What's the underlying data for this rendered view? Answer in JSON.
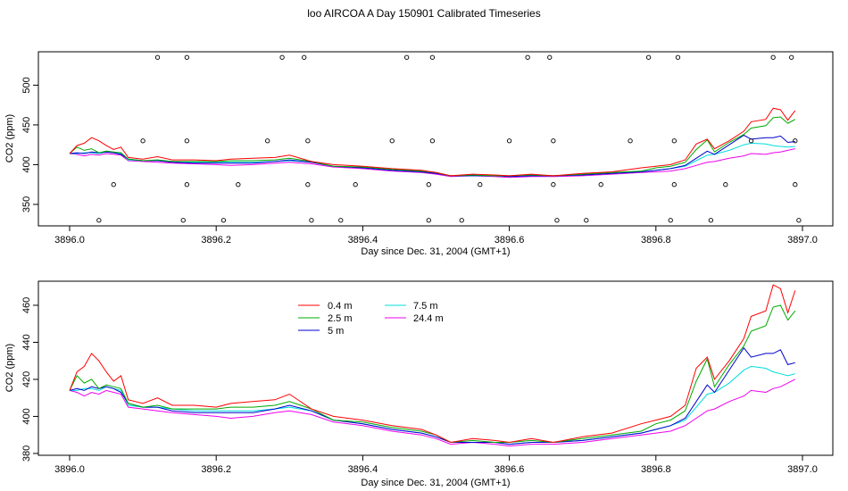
{
  "title": "loo AIRCOA A  Day 150901  Calibrated Timeseries",
  "colors": {
    "s04": "#ff0000",
    "s25": "#00aa00",
    "s5": "#0000cc",
    "s75": "#00dddd",
    "s244": "#ee00ee"
  },
  "chart_data": [
    {
      "type": "line",
      "xlabel": "Day since Dec. 31, 2004 (GMT+1)",
      "ylabel": "CO2 (ppm)",
      "xlim": [
        3896.0,
        3897.0
      ],
      "ylim": [
        323,
        542
      ],
      "xticks": [
        "3896.0",
        "3896.2",
        "3896.4",
        "3896.6",
        "3896.8",
        "3897.0"
      ],
      "xtick_values": [
        3896.0,
        3896.2,
        3896.4,
        3896.6,
        3896.8,
        3897.0
      ],
      "yticks": [
        "350",
        "400",
        "450",
        "500"
      ],
      "ytick_values": [
        350,
        400,
        450,
        500
      ],
      "scatter_points": [
        [
          3896.04,
          330
        ],
        [
          3896.06,
          375
        ],
        [
          3896.1,
          430
        ],
        [
          3896.12,
          535
        ],
        [
          3896.155,
          330
        ],
        [
          3896.16,
          375
        ],
        [
          3896.16,
          430
        ],
        [
          3896.16,
          535
        ],
        [
          3896.21,
          330
        ],
        [
          3896.23,
          375
        ],
        [
          3896.27,
          430
        ],
        [
          3896.29,
          535
        ],
        [
          3896.32,
          535
        ],
        [
          3896.325,
          430
        ],
        [
          3896.325,
          375
        ],
        [
          3896.33,
          330
        ],
        [
          3896.37,
          330
        ],
        [
          3896.39,
          375
        ],
        [
          3896.44,
          430
        ],
        [
          3896.46,
          535
        ],
        [
          3896.49,
          330
        ],
        [
          3896.49,
          375
        ],
        [
          3896.495,
          430
        ],
        [
          3896.495,
          535
        ],
        [
          3896.535,
          330
        ],
        [
          3896.56,
          375
        ],
        [
          3896.6,
          430
        ],
        [
          3896.625,
          535
        ],
        [
          3896.655,
          535
        ],
        [
          3896.66,
          430
        ],
        [
          3896.66,
          375
        ],
        [
          3896.665,
          330
        ],
        [
          3896.705,
          330
        ],
        [
          3896.725,
          375
        ],
        [
          3896.765,
          430
        ],
        [
          3896.79,
          535
        ],
        [
          3896.82,
          330
        ],
        [
          3896.825,
          375
        ],
        [
          3896.825,
          430
        ],
        [
          3896.83,
          535
        ],
        [
          3896.875,
          330
        ],
        [
          3896.895,
          375
        ],
        [
          3896.93,
          430
        ],
        [
          3896.96,
          535
        ],
        [
          3896.985,
          535
        ],
        [
          3896.99,
          430
        ],
        [
          3896.99,
          375
        ],
        [
          3896.995,
          330
        ]
      ]
    },
    {
      "type": "line",
      "xlabel": "Day since Dec. 31, 2004 (GMT+1)",
      "ylabel": "CO2 (ppm)",
      "xlim": [
        3896.0,
        3897.0
      ],
      "ylim": [
        379,
        473
      ],
      "xticks": [
        "3896.0",
        "3896.2",
        "3896.4",
        "3896.6",
        "3896.8",
        "3897.0"
      ],
      "xtick_values": [
        3896.0,
        3896.2,
        3896.4,
        3896.6,
        3896.8,
        3897.0
      ],
      "yticks": [
        "380",
        "400",
        "420",
        "440",
        "460"
      ],
      "ytick_values": [
        380,
        400,
        420,
        440,
        460
      ],
      "legend": {
        "position": "top-left",
        "items": [
          "0.4 m",
          "2.5 m",
          "5 m",
          "7.5 m",
          "24.4 m"
        ]
      }
    }
  ],
  "series": [
    {
      "name": "0.4 m",
      "color_key": "s04",
      "x": [
        3896.0,
        3896.01,
        3896.02,
        3896.03,
        3896.04,
        3896.05,
        3896.06,
        3896.07,
        3896.08,
        3896.1,
        3896.12,
        3896.14,
        3896.17,
        3896.2,
        3896.22,
        3896.25,
        3896.28,
        3896.3,
        3896.33,
        3896.36,
        3896.4,
        3896.44,
        3896.48,
        3896.5,
        3896.52,
        3896.55,
        3896.58,
        3896.6,
        3896.63,
        3896.66,
        3896.7,
        3896.74,
        3896.78,
        3896.8,
        3896.82,
        3896.84,
        3896.855,
        3896.87,
        3896.88,
        3896.9,
        3896.92,
        3896.93,
        3896.95,
        3896.96,
        3896.97,
        3896.98,
        3896.99
      ],
      "y": [
        414,
        424,
        427,
        434,
        430,
        424,
        419,
        422,
        409,
        407,
        410,
        406,
        406,
        405,
        407,
        408,
        409,
        412,
        404,
        400,
        398,
        395,
        393,
        390,
        386,
        388,
        387,
        386,
        388,
        386,
        389,
        391,
        396,
        398,
        400,
        406,
        426,
        432,
        420,
        430,
        442,
        454,
        457,
        471,
        469,
        456,
        468
      ]
    },
    {
      "name": "2.5 m",
      "color_key": "s25",
      "x": [
        3896.0,
        3896.01,
        3896.02,
        3896.03,
        3896.04,
        3896.05,
        3896.06,
        3896.07,
        3896.08,
        3896.1,
        3896.12,
        3896.14,
        3896.17,
        3896.2,
        3896.22,
        3896.25,
        3896.28,
        3896.3,
        3896.33,
        3896.36,
        3896.4,
        3896.44,
        3896.48,
        3896.5,
        3896.52,
        3896.55,
        3896.58,
        3896.6,
        3896.63,
        3896.66,
        3896.7,
        3896.74,
        3896.78,
        3896.8,
        3896.82,
        3896.84,
        3896.855,
        3896.87,
        3896.88,
        3896.9,
        3896.92,
        3896.93,
        3896.95,
        3896.96,
        3896.97,
        3896.98,
        3896.99
      ],
      "y": [
        414,
        422,
        418,
        420,
        415,
        417,
        416,
        415,
        407,
        405,
        406,
        404,
        404,
        404,
        405,
        405,
        406,
        408,
        404,
        398,
        397,
        394,
        392,
        390,
        386,
        387,
        386,
        386,
        387,
        386,
        388,
        390,
        392,
        396,
        398,
        403,
        419,
        431,
        416,
        428,
        438,
        446,
        449,
        459,
        460,
        452,
        457
      ]
    },
    {
      "name": "5 m",
      "color_key": "s5",
      "x": [
        3896.0,
        3896.01,
        3896.02,
        3896.03,
        3896.04,
        3896.05,
        3896.06,
        3896.07,
        3896.08,
        3896.1,
        3896.12,
        3896.14,
        3896.17,
        3896.2,
        3896.22,
        3896.25,
        3896.28,
        3896.3,
        3896.33,
        3896.36,
        3896.4,
        3896.44,
        3896.48,
        3896.5,
        3896.52,
        3896.55,
        3896.58,
        3896.6,
        3896.63,
        3896.66,
        3896.7,
        3896.74,
        3896.78,
        3896.8,
        3896.82,
        3896.84,
        3896.855,
        3896.87,
        3896.88,
        3896.9,
        3896.92,
        3896.93,
        3896.95,
        3896.96,
        3896.97,
        3896.98,
        3896.99
      ],
      "y": [
        414,
        415,
        414,
        416,
        415,
        416,
        415,
        413,
        407,
        405,
        405,
        403,
        402,
        402,
        402,
        402,
        404,
        406,
        403,
        398,
        396,
        393,
        391,
        389,
        386,
        386,
        386,
        385,
        386,
        386,
        387,
        389,
        391,
        393,
        395,
        399,
        408,
        417,
        413,
        425,
        437,
        432,
        434,
        434,
        436,
        428,
        429
      ]
    },
    {
      "name": "7.5 m",
      "color_key": "s75",
      "x": [
        3896.0,
        3896.01,
        3896.02,
        3896.03,
        3896.04,
        3896.05,
        3896.06,
        3896.07,
        3896.08,
        3896.1,
        3896.12,
        3896.14,
        3896.17,
        3896.2,
        3896.22,
        3896.25,
        3896.28,
        3896.3,
        3896.33,
        3896.36,
        3896.4,
        3896.44,
        3896.48,
        3896.5,
        3896.52,
        3896.55,
        3896.58,
        3896.6,
        3896.63,
        3896.66,
        3896.7,
        3896.74,
        3896.78,
        3896.8,
        3896.82,
        3896.84,
        3896.855,
        3896.87,
        3896.88,
        3896.9,
        3896.92,
        3896.93,
        3896.95,
        3896.96,
        3896.97,
        3896.98,
        3896.99
      ],
      "y": [
        414,
        414,
        415,
        415,
        414,
        416,
        415,
        414,
        406,
        405,
        405,
        404,
        403,
        403,
        403,
        403,
        404,
        405,
        403,
        398,
        396,
        393,
        391,
        389,
        386,
        386,
        386,
        385,
        386,
        386,
        387,
        389,
        391,
        393,
        395,
        398,
        405,
        412,
        413,
        418,
        425,
        427,
        426,
        424,
        423,
        422,
        423
      ]
    },
    {
      "name": "24.4 m",
      "color_key": "s244",
      "x": [
        3896.0,
        3896.01,
        3896.02,
        3896.03,
        3896.04,
        3896.05,
        3896.06,
        3896.07,
        3896.08,
        3896.1,
        3896.12,
        3896.14,
        3896.17,
        3896.2,
        3896.22,
        3896.25,
        3896.28,
        3896.3,
        3896.33,
        3896.36,
        3896.4,
        3896.44,
        3896.48,
        3896.5,
        3896.52,
        3896.55,
        3896.58,
        3896.6,
        3896.63,
        3896.66,
        3896.7,
        3896.74,
        3896.78,
        3896.8,
        3896.82,
        3896.84,
        3896.855,
        3896.87,
        3896.88,
        3896.9,
        3896.92,
        3896.93,
        3896.95,
        3896.96,
        3896.97,
        3896.98,
        3896.99
      ],
      "y": [
        414,
        413,
        411,
        413,
        412,
        414,
        413,
        412,
        405,
        404,
        403,
        402,
        401,
        400,
        399,
        400,
        402,
        403,
        401,
        397,
        395,
        392,
        390,
        388,
        385,
        386,
        385,
        384,
        385,
        385,
        386,
        388,
        390,
        391,
        392,
        395,
        399,
        403,
        404,
        408,
        411,
        414,
        413,
        415,
        416,
        418,
        420
      ]
    }
  ]
}
